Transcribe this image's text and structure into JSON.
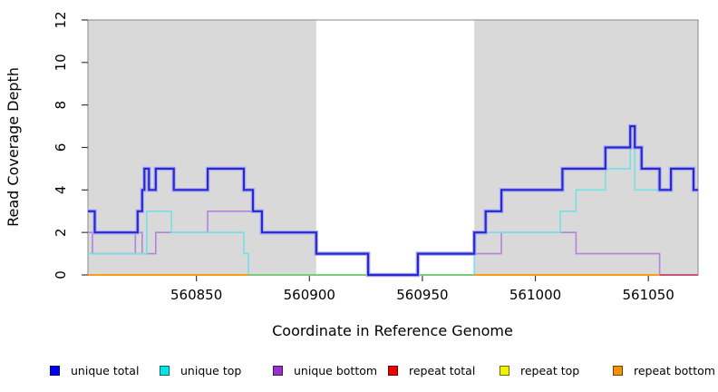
{
  "chart_data": {
    "type": "line",
    "subtype": "step-coverage-plot",
    "title": "",
    "xlabel": "Coordinate in Reference Genome",
    "ylabel": "Read Coverage Depth",
    "xlim": [
      560802,
      561072
    ],
    "ylim": [
      0,
      12
    ],
    "x_ticks": [
      560850,
      560900,
      560950,
      561000,
      561050
    ],
    "y_ticks": [
      0,
      2,
      4,
      6,
      8,
      10,
      12
    ],
    "grid": false,
    "legend_position": "bottom",
    "plot_background": "#ffffff",
    "band_color": "#d9d9d9",
    "background_bands": [
      {
        "name": "left-highlight-region",
        "x1": 560802,
        "x2": 560903
      },
      {
        "name": "right-highlight-region",
        "x1": 560973,
        "x2": 561072
      }
    ],
    "series": [
      {
        "name": "unique total",
        "color": "#2828d2",
        "halo": "#b0b0ee",
        "width": 2.2,
        "points": [
          [
            560802,
            3
          ],
          [
            560805,
            2
          ],
          [
            560824,
            3
          ],
          [
            560826,
            4
          ],
          [
            560827,
            5
          ],
          [
            560829,
            4
          ],
          [
            560832,
            5
          ],
          [
            560840,
            4
          ],
          [
            560855,
            5
          ],
          [
            560871,
            4
          ],
          [
            560875,
            3
          ],
          [
            560879,
            2
          ],
          [
            560903,
            1
          ],
          [
            560926,
            0
          ],
          [
            560948,
            1
          ],
          [
            560973,
            2
          ],
          [
            560978,
            3
          ],
          [
            560985,
            4
          ],
          [
            561012,
            5
          ],
          [
            561031,
            6
          ],
          [
            561042,
            7
          ],
          [
            561044,
            6
          ],
          [
            561047,
            5
          ],
          [
            561055,
            4
          ],
          [
            561060,
            5
          ],
          [
            561070,
            4
          ]
        ]
      },
      {
        "name": "unique top",
        "color": "#74e0e4",
        "width": 1.6,
        "points": [
          [
            560802,
            1
          ],
          [
            560828,
            3
          ],
          [
            560839,
            2
          ],
          [
            560871,
            1
          ],
          [
            560873,
            0
          ],
          [
            560973,
            2
          ],
          [
            561011,
            3
          ],
          [
            561018,
            4
          ],
          [
            561031,
            5
          ],
          [
            561042,
            6
          ],
          [
            561044,
            4
          ],
          [
            561060,
            5
          ],
          [
            561070,
            4
          ]
        ]
      },
      {
        "name": "unique bottom",
        "color": "#b383da",
        "width": 1.6,
        "points": [
          [
            560802,
            2
          ],
          [
            560804,
            1
          ],
          [
            560823,
            2
          ],
          [
            560826,
            1
          ],
          [
            560832,
            2
          ],
          [
            560855,
            3
          ],
          [
            560879,
            2
          ],
          [
            560903,
            1
          ],
          [
            560926,
            0
          ],
          [
            560948,
            1
          ],
          [
            560985,
            2
          ],
          [
            561018,
            1
          ],
          [
            561055,
            0
          ]
        ]
      },
      {
        "name": "repeat total",
        "color": "#ee0000",
        "width": 1.6,
        "points": [],
        "note": "at depth 0 across plot; visible only in baseline overlap segments"
      },
      {
        "name": "repeat top",
        "color": "#f2f200",
        "width": 1.6,
        "points": [],
        "note": "at depth 0 across plot; visible only in baseline overlap segments"
      },
      {
        "name": "repeat bottom",
        "color": "#ff9b1c",
        "width": 1.6,
        "points": [],
        "note": "at depth 0; forms the orange baseline segments"
      }
    ],
    "baseline_segments": [
      {
        "x1": 560802,
        "x2": 560873,
        "color": "#ff9b1c",
        "series": "repeat bottom"
      },
      {
        "x1": 560873,
        "x2": 560973,
        "color": "#7cca7c",
        "series": "unique top over repeat top"
      },
      {
        "x1": 560973,
        "x2": 561055,
        "color": "#ff9b1c",
        "series": "repeat bottom"
      },
      {
        "x1": 561055,
        "x2": 561072,
        "color": "#cd5377",
        "series": "unique bottom over repeat total"
      }
    ],
    "legend": [
      {
        "label": "unique total",
        "color": "#0000ee"
      },
      {
        "label": "unique top",
        "color": "#00e6e6"
      },
      {
        "label": "unique bottom",
        "color": "#9932cc"
      },
      {
        "label": "repeat total",
        "color": "#ee0000"
      },
      {
        "label": "repeat top",
        "color": "#f2f200"
      },
      {
        "label": "repeat bottom",
        "color": "#f49109"
      }
    ],
    "axis_colors": {
      "box": "#8a8a8a",
      "ticks": "#3a3a3a",
      "tick_labels": "#000000"
    }
  },
  "layout_note_values": {
    "y_tick_label_rotation_deg": -90
  }
}
